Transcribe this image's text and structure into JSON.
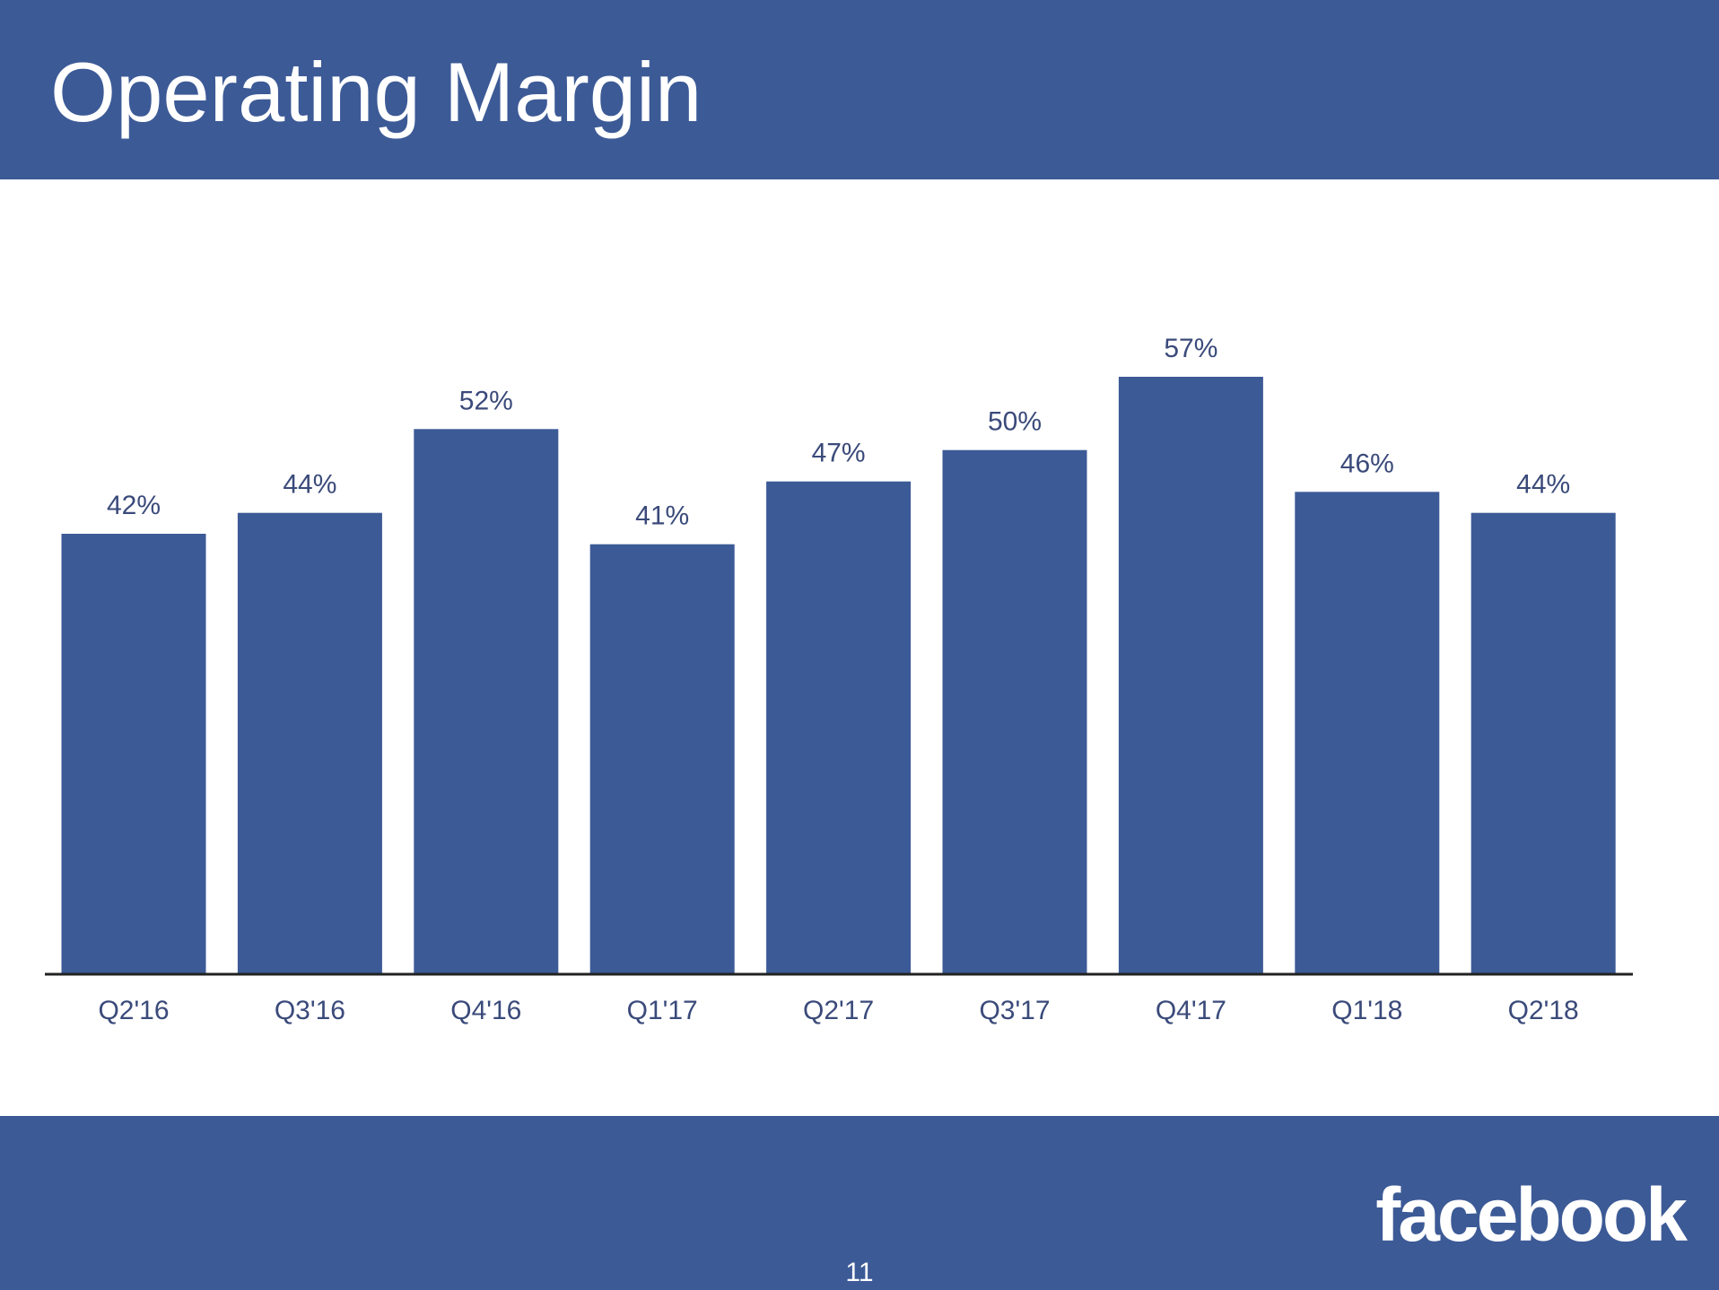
{
  "slide": {
    "title": "Operating Margin",
    "logo_text": "facebook",
    "page_number": "11"
  },
  "colors": {
    "brand": "#3c5a96",
    "bar": "#3c5a96",
    "axis": "#222222",
    "label_text": "#3a4a7a",
    "background": "#ffffff"
  },
  "chart_data": {
    "type": "bar",
    "title": "",
    "xlabel": "",
    "ylabel": "",
    "categories": [
      "Q2'16",
      "Q3'16",
      "Q4'16",
      "Q1'17",
      "Q2'17",
      "Q3'17",
      "Q4'17",
      "Q1'18",
      "Q2'18"
    ],
    "values": [
      42,
      44,
      52,
      41,
      47,
      50,
      57,
      46,
      44
    ],
    "data_labels": [
      "42%",
      "44%",
      "52%",
      "41%",
      "47%",
      "50%",
      "57%",
      "46%",
      "44%"
    ],
    "ylim": [
      0,
      57
    ],
    "grid": false,
    "y_axis_visible": false,
    "legend": "none"
  }
}
